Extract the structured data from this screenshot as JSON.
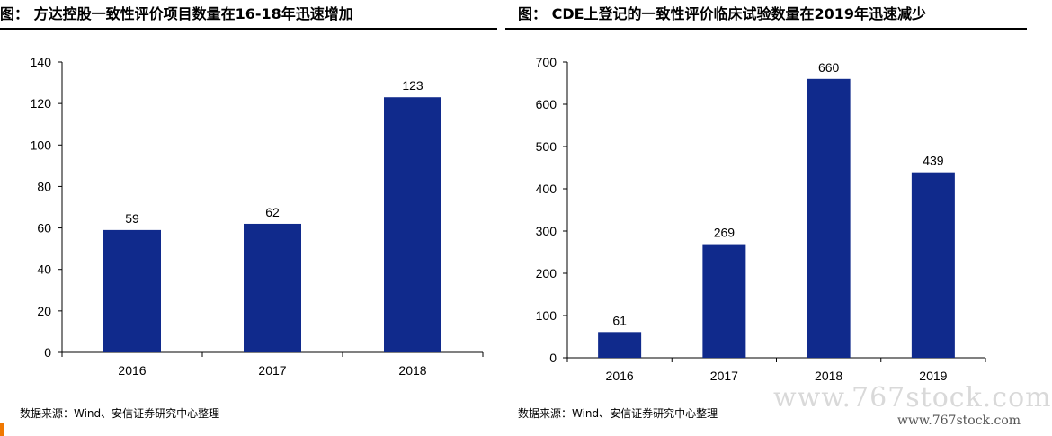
{
  "chart_data": [
    {
      "type": "bar",
      "title": "图： 方达控股一致性评价项目数量在16-18年迅速增加",
      "categories": [
        "2016",
        "2017",
        "2018"
      ],
      "values": [
        59,
        62,
        123
      ],
      "data_labels": [
        "59",
        "62",
        "123"
      ],
      "ylim": [
        0,
        140
      ],
      "yticks": [
        0,
        20,
        40,
        60,
        80,
        100,
        120,
        140
      ],
      "xlabel": "",
      "ylabel": "",
      "grid": false,
      "legend": "none",
      "bar_color": "#102a8c",
      "source": "数据来源：Wind、安信证券研究中心整理"
    },
    {
      "type": "bar",
      "title": "图： CDE上登记的一致性评价临床试验数量在2019年迅速减少",
      "categories": [
        "2016",
        "2017",
        "2018",
        "2019"
      ],
      "values": [
        61,
        269,
        660,
        439
      ],
      "data_labels": [
        "61",
        "269",
        "660",
        "439"
      ],
      "ylim": [
        0,
        700
      ],
      "yticks": [
        0,
        100,
        200,
        300,
        400,
        500,
        600,
        700
      ],
      "xlabel": "",
      "ylabel": "",
      "grid": false,
      "legend": "none",
      "bar_color": "#102a8c",
      "source": "数据来源：Wind、安信证券研究中心整理"
    }
  ],
  "watermark": {
    "main": "www.767stock.com",
    "sub": "www.767stock.com"
  }
}
